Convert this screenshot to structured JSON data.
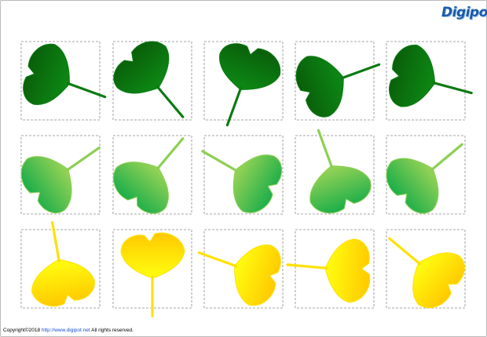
{
  "logo": "Digipot",
  "footer": {
    "prefix": "Copyright©2018",
    "link": "http://www.digipot.net",
    "suffix": "All rights reserved."
  }
}
